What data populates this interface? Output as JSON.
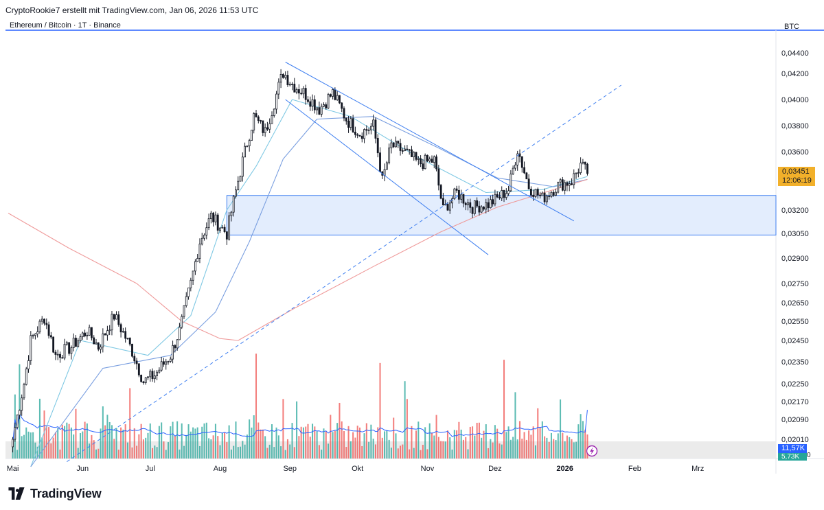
{
  "header": {
    "caption": "CryptoRookie7 erstellt mit TradingView.com, Jan 06, 2026 11:53 UTC",
    "symbol": "Ethereum / Bitcoin · 1T · Binance",
    "currency": "BTC"
  },
  "badges": {
    "price": "0,03451",
    "countdown": "12:06:19",
    "vol_ma": "11,57K",
    "vol": "5,73K",
    "vol_zero": "0"
  },
  "brand": {
    "name": "TradingView"
  },
  "colors": {
    "up": "#26a69a",
    "down": "#ef5350",
    "ma_fast": "#7ec8e3",
    "ma_mid": "#7a9fe0",
    "ma_slow": "#ef9a9a",
    "zone": "#e3edfd",
    "zone_border": "#3d7ef0",
    "line": "#3d7ef0",
    "price_badge": "#f2b02a"
  },
  "chart_data": {
    "type": "candlestick",
    "title": "Ethereum / Bitcoin · 1T · Binance",
    "y_unit": "BTC",
    "y_ticks": [
      "0,04400",
      "0,04200",
      "0,04000",
      "0,03800",
      "0,03600",
      "0,03200",
      "0,03050",
      "0,02900",
      "0,02750",
      "0,02650",
      "0,02550",
      "0,02450",
      "0,02350",
      "0,02250",
      "0,02170",
      "0,02090",
      "0,02010"
    ],
    "y_tick_values": [
      0.044,
      0.042,
      0.04,
      0.038,
      0.036,
      0.032,
      0.0305,
      0.029,
      0.0275,
      0.0265,
      0.0255,
      0.0245,
      0.0235,
      0.0225,
      0.0217,
      0.0209,
      0.0201
    ],
    "x_ticks": [
      "Mai",
      "Jun",
      "Jul",
      "Aug",
      "Sep",
      "Okt",
      "Nov",
      "Dez",
      "2026",
      "Feb",
      "Mrz"
    ],
    "x_tick_days": [
      0,
      31,
      61,
      92,
      123,
      153,
      184,
      214,
      245,
      276,
      304
    ],
    "x_range_days": [
      -2,
      335
    ],
    "last_close": 0.03451,
    "keypoints": [
      [
        0,
        0.0201
      ],
      [
        5,
        0.0225
      ],
      [
        8,
        0.0245
      ],
      [
        14,
        0.0257
      ],
      [
        19,
        0.0238
      ],
      [
        26,
        0.0242
      ],
      [
        33,
        0.025
      ],
      [
        38,
        0.0242
      ],
      [
        45,
        0.0258
      ],
      [
        53,
        0.024
      ],
      [
        58,
        0.0226
      ],
      [
        63,
        0.0229
      ],
      [
        70,
        0.0238
      ],
      [
        74,
        0.025
      ],
      [
        79,
        0.0275
      ],
      [
        83,
        0.03
      ],
      [
        88,
        0.0316
      ],
      [
        95,
        0.0305
      ],
      [
        100,
        0.034
      ],
      [
        107,
        0.0387
      ],
      [
        112,
        0.0375
      ],
      [
        116,
        0.0398
      ],
      [
        120,
        0.0421
      ],
      [
        124,
        0.0412
      ],
      [
        130,
        0.0404
      ],
      [
        136,
        0.0393
      ],
      [
        142,
        0.0405
      ],
      [
        148,
        0.0385
      ],
      [
        154,
        0.0374
      ],
      [
        160,
        0.038
      ],
      [
        164,
        0.034
      ],
      [
        168,
        0.0365
      ],
      [
        174,
        0.036
      ],
      [
        180,
        0.0352
      ],
      [
        187,
        0.0354
      ],
      [
        191,
        0.032
      ],
      [
        197,
        0.0332
      ],
      [
        204,
        0.0322
      ],
      [
        211,
        0.0324
      ],
      [
        215,
        0.0328
      ],
      [
        220,
        0.0334
      ],
      [
        224,
        0.0362
      ],
      [
        229,
        0.0336
      ],
      [
        235,
        0.0328
      ],
      [
        242,
        0.0337
      ],
      [
        248,
        0.034
      ],
      [
        252,
        0.0351
      ],
      [
        255,
        0.03451
      ]
    ],
    "moving_averages": [
      {
        "name": "MA fast",
        "points": [
          [
            8,
            0.019
          ],
          [
            30,
            0.0245
          ],
          [
            60,
            0.0238
          ],
          [
            79,
            0.0258
          ],
          [
            95,
            0.032
          ],
          [
            108,
            0.035
          ],
          [
            124,
            0.04
          ],
          [
            150,
            0.0387
          ],
          [
            180,
            0.0356
          ],
          [
            210,
            0.0332
          ],
          [
            235,
            0.0334
          ],
          [
            255,
            0.0343
          ]
        ]
      },
      {
        "name": "MA mid",
        "points": [
          [
            8,
            0.019
          ],
          [
            40,
            0.0232
          ],
          [
            70,
            0.0238
          ],
          [
            90,
            0.026
          ],
          [
            105,
            0.03
          ],
          [
            120,
            0.0355
          ],
          [
            135,
            0.0385
          ],
          [
            160,
            0.0387
          ],
          [
            190,
            0.0362
          ],
          [
            215,
            0.0342
          ],
          [
            240,
            0.0336
          ],
          [
            255,
            0.0341
          ]
        ]
      },
      {
        "name": "MA slow",
        "points": [
          [
            -2,
            0.0318
          ],
          [
            25,
            0.0296
          ],
          [
            55,
            0.0275
          ],
          [
            75,
            0.0255
          ],
          [
            92,
            0.0246
          ],
          [
            100,
            0.0245
          ],
          [
            125,
            0.0262
          ],
          [
            160,
            0.0285
          ],
          [
            190,
            0.0306
          ],
          [
            215,
            0.0322
          ],
          [
            240,
            0.0334
          ],
          [
            255,
            0.0341
          ]
        ]
      }
    ],
    "zone": {
      "day_start": 95,
      "day_end": 335,
      "price_high": 0.033,
      "price_low": 0.0304
    },
    "trendlines": [
      {
        "name": "upper channel",
        "style": "solid",
        "from": [
          121,
          0.0431
        ],
        "to": [
          249,
          0.0313
        ]
      },
      {
        "name": "lower channel",
        "style": "solid",
        "from": [
          121,
          0.04
        ],
        "to": [
          211,
          0.0292
        ]
      },
      {
        "name": "rising support",
        "style": "dashed",
        "from": [
          24,
          0.0192
        ],
        "to": [
          270,
          0.0411
        ]
      }
    ],
    "volume": {
      "max_bar_k": 25,
      "last_ma_k": 11.57,
      "last_k": 5.73
    }
  }
}
